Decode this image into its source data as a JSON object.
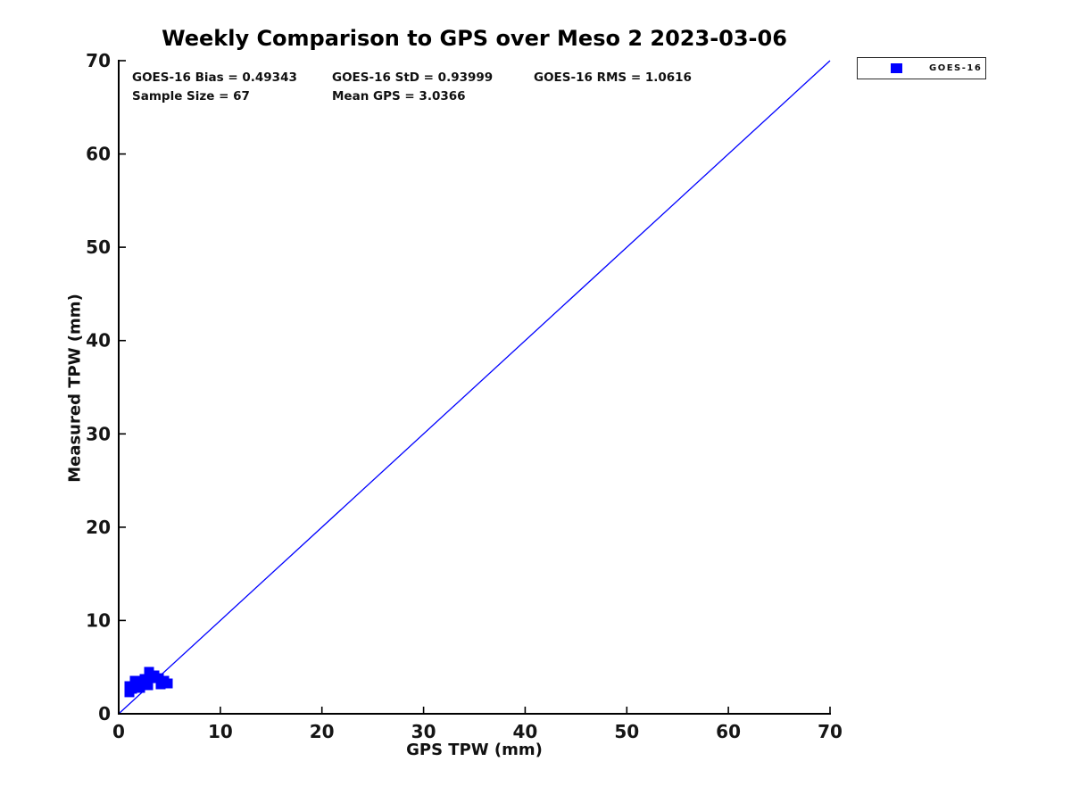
{
  "figure": {
    "background": "#FFFFFF"
  },
  "chart_data": {
    "type": "scatter",
    "title": "Weekly Comparison to GPS over Meso 2 2023-03-06",
    "xlabel": "GPS TPW (mm)",
    "ylabel": "Measured TPW (mm)",
    "xlim": [
      0,
      70
    ],
    "ylim": [
      0,
      70
    ],
    "xticks": [
      0,
      10,
      20,
      30,
      40,
      50,
      60,
      70
    ],
    "yticks": [
      0,
      10,
      20,
      30,
      40,
      50,
      60,
      70
    ],
    "grid": false,
    "axis_color": "#000000",
    "tick_direction": "in",
    "legend": {
      "position": "outside-top-right",
      "entries": [
        {
          "label": "GOES-16",
          "marker": "square",
          "color": "#0000FF"
        }
      ]
    },
    "reference_line": {
      "from": [
        0,
        0
      ],
      "to": [
        70,
        70
      ],
      "color": "#0000FF",
      "width": 1.3
    },
    "series": [
      {
        "name": "GOES-16",
        "marker": "square",
        "color": "#0000FF",
        "marker_size_px": 11,
        "sample_size": 67,
        "points": [
          [
            1.05,
            2.96
          ],
          [
            1.05,
            2.3
          ],
          [
            1.32,
            2.68
          ],
          [
            1.58,
            3.54
          ],
          [
            2.02,
            3.25
          ],
          [
            2.11,
            2.77
          ],
          [
            2.55,
            3.73
          ],
          [
            2.9,
            3.06
          ],
          [
            2.99,
            4.49
          ],
          [
            3.07,
            3.82
          ],
          [
            3.51,
            4.11
          ],
          [
            3.95,
            3.82
          ],
          [
            4.13,
            3.16
          ],
          [
            4.48,
            3.54
          ],
          [
            4.83,
            3.25
          ]
        ]
      }
    ],
    "annotations": {
      "bias": "GOES-16 Bias = 0.49343",
      "std": "GOES-16 StD = 0.93999",
      "rms": "GOES-16 RMS = 1.0616",
      "sample_size": "Sample Size = 67",
      "mean_gps": "Mean GPS = 3.0366"
    }
  }
}
